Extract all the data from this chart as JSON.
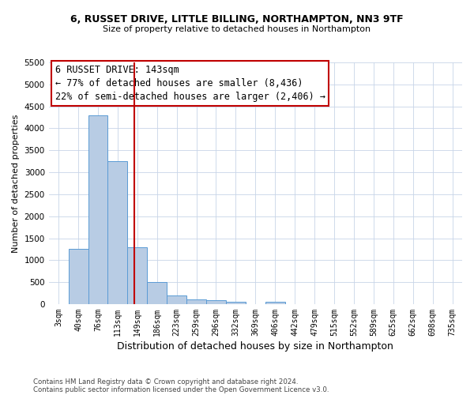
{
  "title1": "6, RUSSET DRIVE, LITTLE BILLING, NORTHAMPTON, NN3 9TF",
  "title2": "Size of property relative to detached houses in Northampton",
  "xlabel": "Distribution of detached houses by size in Northampton",
  "ylabel": "Number of detached properties",
  "categories": [
    "3sqm",
    "40sqm",
    "76sqm",
    "113sqm",
    "149sqm",
    "186sqm",
    "223sqm",
    "259sqm",
    "296sqm",
    "332sqm",
    "369sqm",
    "406sqm",
    "442sqm",
    "479sqm",
    "515sqm",
    "552sqm",
    "589sqm",
    "625sqm",
    "662sqm",
    "698sqm",
    "735sqm"
  ],
  "values": [
    0,
    1250,
    4300,
    3250,
    1300,
    500,
    200,
    100,
    80,
    60,
    0,
    60,
    0,
    0,
    0,
    0,
    0,
    0,
    0,
    0,
    0
  ],
  "bar_color": "#b8cce4",
  "bar_edge_color": "#5b9bd5",
  "vline_color": "#c00000",
  "ylim": [
    0,
    5500
  ],
  "yticks": [
    0,
    500,
    1000,
    1500,
    2000,
    2500,
    3000,
    3500,
    4000,
    4500,
    5000,
    5500
  ],
  "annotation_box_text": "6 RUSSET DRIVE: 143sqm\n← 77% of detached houses are smaller (8,436)\n22% of semi-detached houses are larger (2,406) →",
  "annotation_box_color": "#c00000",
  "annotation_text_size": 8.5,
  "footer1": "Contains HM Land Registry data © Crown copyright and database right 2024.",
  "footer2": "Contains public sector information licensed under the Open Government Licence v3.0.",
  "bg_color": "#ffffff",
  "grid_color": "#c8d4e8"
}
